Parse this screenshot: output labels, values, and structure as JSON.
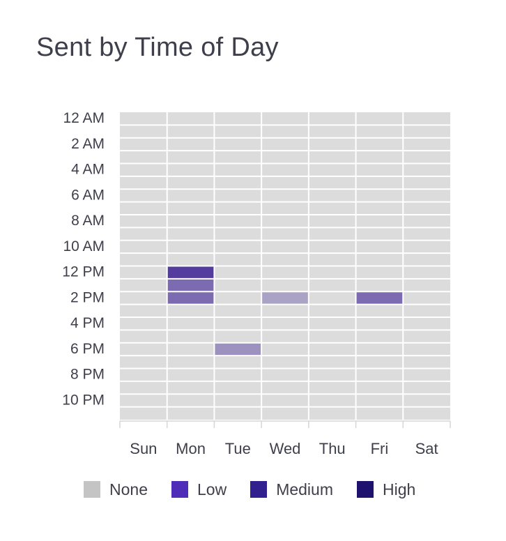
{
  "chart_data": {
    "type": "heatmap",
    "title": "Sent by Time of Day",
    "x_categories": [
      "Sun",
      "Mon",
      "Tue",
      "Wed",
      "Thu",
      "Fri",
      "Sat"
    ],
    "y_categories": [
      "12 AM",
      "1 AM",
      "2 AM",
      "3 AM",
      "4 AM",
      "5 AM",
      "6 AM",
      "7 AM",
      "8 AM",
      "9 AM",
      "10 AM",
      "11 AM",
      "12 PM",
      "1 PM",
      "2 PM",
      "3 PM",
      "4 PM",
      "5 PM",
      "6 PM",
      "7 PM",
      "8 PM",
      "9 PM",
      "10 PM",
      "11 PM"
    ],
    "y_tick_labels": [
      "12 AM",
      "2 AM",
      "4 AM",
      "6 AM",
      "8 AM",
      "10 AM",
      "12 PM",
      "2 PM",
      "4 PM",
      "6 PM",
      "8 PM",
      "10 PM"
    ],
    "cells": [
      {
        "day": "Mon",
        "hour": "12 PM",
        "level": 0.85
      },
      {
        "day": "Mon",
        "hour": "1 PM",
        "level": 0.6
      },
      {
        "day": "Mon",
        "hour": "2 PM",
        "level": 0.6
      },
      {
        "day": "Tue",
        "hour": "6 PM",
        "level": 0.4
      },
      {
        "day": "Wed",
        "hour": "2 PM",
        "level": 0.3
      },
      {
        "day": "Fri",
        "hour": "2 PM",
        "level": 0.6
      }
    ],
    "empty_color": "#dcdcdc",
    "grid_line_color": "#ffffff",
    "legend": [
      {
        "label": "None",
        "color": "#c4c4c4"
      },
      {
        "label": "Low",
        "color": "#4f2db8"
      },
      {
        "label": "Medium",
        "color": "#33208f"
      },
      {
        "label": "High",
        "color": "#1f126e"
      }
    ],
    "legend_placement": "bottom"
  }
}
